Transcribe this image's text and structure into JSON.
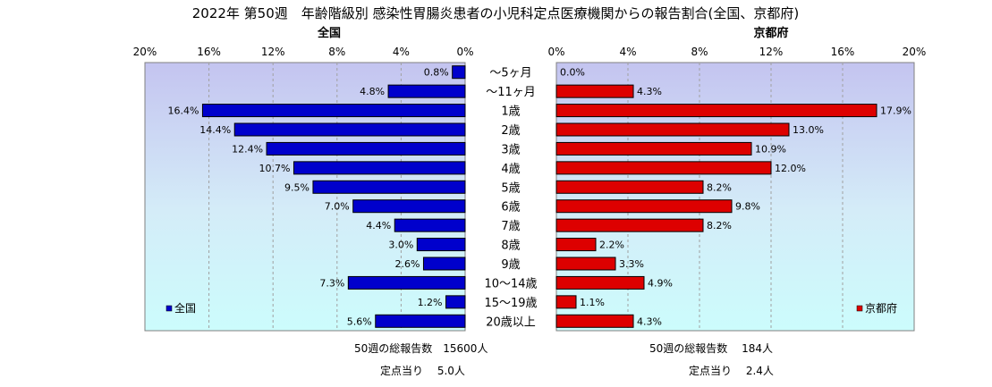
{
  "title": "2022年 第50週　年齢階級別 感染性胃腸炎患者の小児科定点医療機関からの報告割合(全国、京都府)",
  "chart_data": {
    "type": "bar",
    "orientation": "horizontal",
    "categories": [
      "～5ヶ月",
      "～11ヶ月",
      "1歳",
      "2歳",
      "3歳",
      "4歳",
      "5歳",
      "6歳",
      "7歳",
      "8歳",
      "9歳",
      "10～14歳",
      "15～19歳",
      "20歳以上"
    ],
    "series": [
      {
        "name": "全国",
        "panel_title": "全国",
        "color": "#0000cc",
        "values": [
          0.8,
          4.8,
          16.4,
          14.4,
          12.4,
          10.7,
          9.5,
          7.0,
          4.4,
          3.0,
          2.6,
          7.3,
          1.2,
          5.6
        ],
        "labels": [
          "0.8%",
          "4.8%",
          "16.4%",
          "14.4%",
          "12.4%",
          "10.7%",
          "9.5%",
          "7.0%",
          "4.4%",
          "3.0%",
          "2.6%",
          "7.3%",
          "1.2%",
          "5.6%"
        ],
        "legend": "全国"
      },
      {
        "name": "京都府",
        "panel_title": "京都府",
        "color": "#dd0000",
        "values": [
          0.0,
          4.3,
          17.9,
          13.0,
          10.9,
          12.0,
          8.2,
          9.8,
          8.2,
          2.2,
          3.3,
          4.9,
          1.1,
          4.3
        ],
        "labels": [
          "0.0%",
          "4.3%",
          "17.9%",
          "13.0%",
          "10.9%",
          "12.0%",
          "8.2%",
          "9.8%",
          "8.2%",
          "2.2%",
          "3.3%",
          "4.9%",
          "1.1%",
          "4.3%"
        ],
        "legend": "京都府"
      }
    ],
    "xlim": [
      0,
      20
    ],
    "left_ticks": [
      "20%",
      "16%",
      "12%",
      "8%",
      "4%",
      "0%"
    ],
    "right_ticks": [
      "0%",
      "4%",
      "8%",
      "12%",
      "16%",
      "20%"
    ],
    "grid": true,
    "legend_placement": "bottom"
  },
  "summary": {
    "national_total": "50週の総報告数　15600人",
    "national_per_site": "定点当り　 5.0人",
    "kyoto_total": "50週の総報告数　 184人",
    "kyoto_per_site": "定点当り　 2.4人"
  }
}
